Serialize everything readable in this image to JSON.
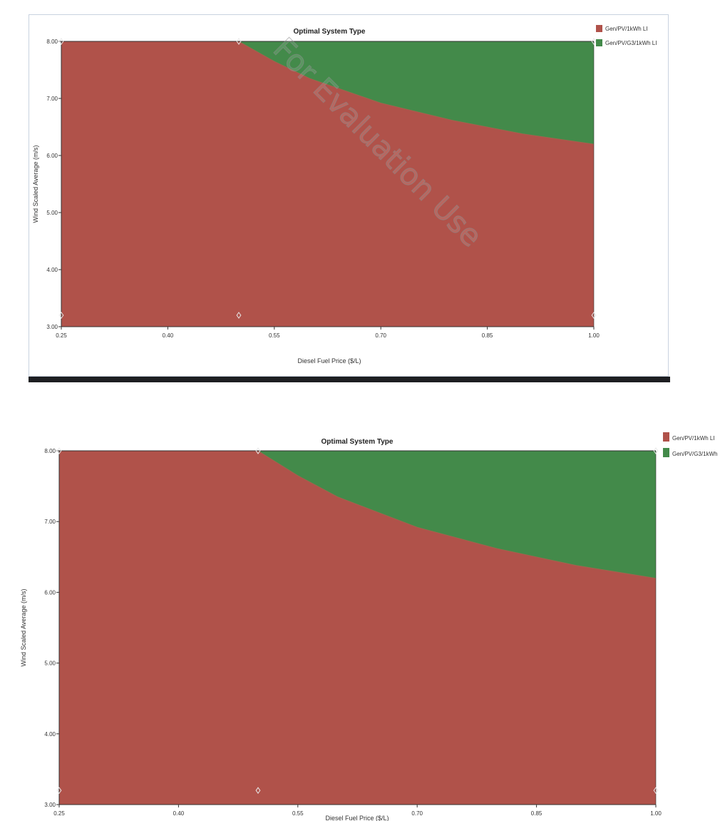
{
  "chart_data": [
    {
      "type": "area",
      "title": "Optimal System Type",
      "xlabel": "Diesel Fuel Price ($/L)",
      "ylabel": "Wind Scaled Average (m/s)",
      "xlim": [
        0.25,
        1.0
      ],
      "ylim": [
        3.0,
        8.0
      ],
      "x_ticks": [
        "0.25",
        "0.40",
        "0.55",
        "0.70",
        "0.85",
        "1.00"
      ],
      "y_ticks": [
        "3.00",
        "4.00",
        "5.00",
        "6.00",
        "7.00",
        "8.00"
      ],
      "legend_position": "top-right",
      "grid": false,
      "categories": [
        {
          "name": "Gen/PV/1kWh LI",
          "color": "#b0524a"
        },
        {
          "name": "Gen/PV/G3/1kWh LI",
          "color": "#438a4a"
        }
      ],
      "boundary": {
        "x": [
          0.5,
          0.55,
          0.6,
          0.7,
          0.8,
          0.9,
          1.0
        ],
        "y": [
          8.0,
          7.65,
          7.35,
          6.92,
          6.62,
          6.38,
          6.2
        ]
      },
      "markers": [
        {
          "x": 0.25,
          "y": 8.0
        },
        {
          "x": 0.5,
          "y": 8.0
        },
        {
          "x": 1.0,
          "y": 8.0
        },
        {
          "x": 0.25,
          "y": 3.2
        },
        {
          "x": 0.5,
          "y": 3.2
        },
        {
          "x": 1.0,
          "y": 3.2
        }
      ],
      "watermark": "For Evaluation Use"
    },
    {
      "type": "area",
      "title": "Optimal System Type",
      "xlabel": "Diesel Fuel Price ($/L)",
      "ylabel": "Wind Scaled Average (m/s)",
      "xlim": [
        0.25,
        1.0
      ],
      "ylim": [
        3.0,
        8.0
      ],
      "x_ticks": [
        "0.25",
        "0.40",
        "0.55",
        "0.70",
        "0.85",
        "1.00"
      ],
      "y_ticks": [
        "3.00",
        "4.00",
        "5.00",
        "6.00",
        "7.00",
        "8.00"
      ],
      "legend_position": "top-right",
      "grid": false,
      "categories": [
        {
          "name": "Gen/PV/1kWh LI",
          "color": "#b0524a"
        },
        {
          "name": "Gen/PV/G3/1kWh",
          "color": "#438a4a"
        }
      ],
      "boundary": {
        "x": [
          0.5,
          0.55,
          0.6,
          0.7,
          0.8,
          0.9,
          1.0
        ],
        "y": [
          8.0,
          7.65,
          7.35,
          6.92,
          6.62,
          6.38,
          6.2
        ]
      },
      "markers": [
        {
          "x": 0.25,
          "y": 8.0
        },
        {
          "x": 0.5,
          "y": 8.0
        },
        {
          "x": 1.0,
          "y": 8.0
        },
        {
          "x": 0.25,
          "y": 3.2
        },
        {
          "x": 0.5,
          "y": 3.2
        },
        {
          "x": 1.0,
          "y": 3.2
        }
      ]
    }
  ]
}
